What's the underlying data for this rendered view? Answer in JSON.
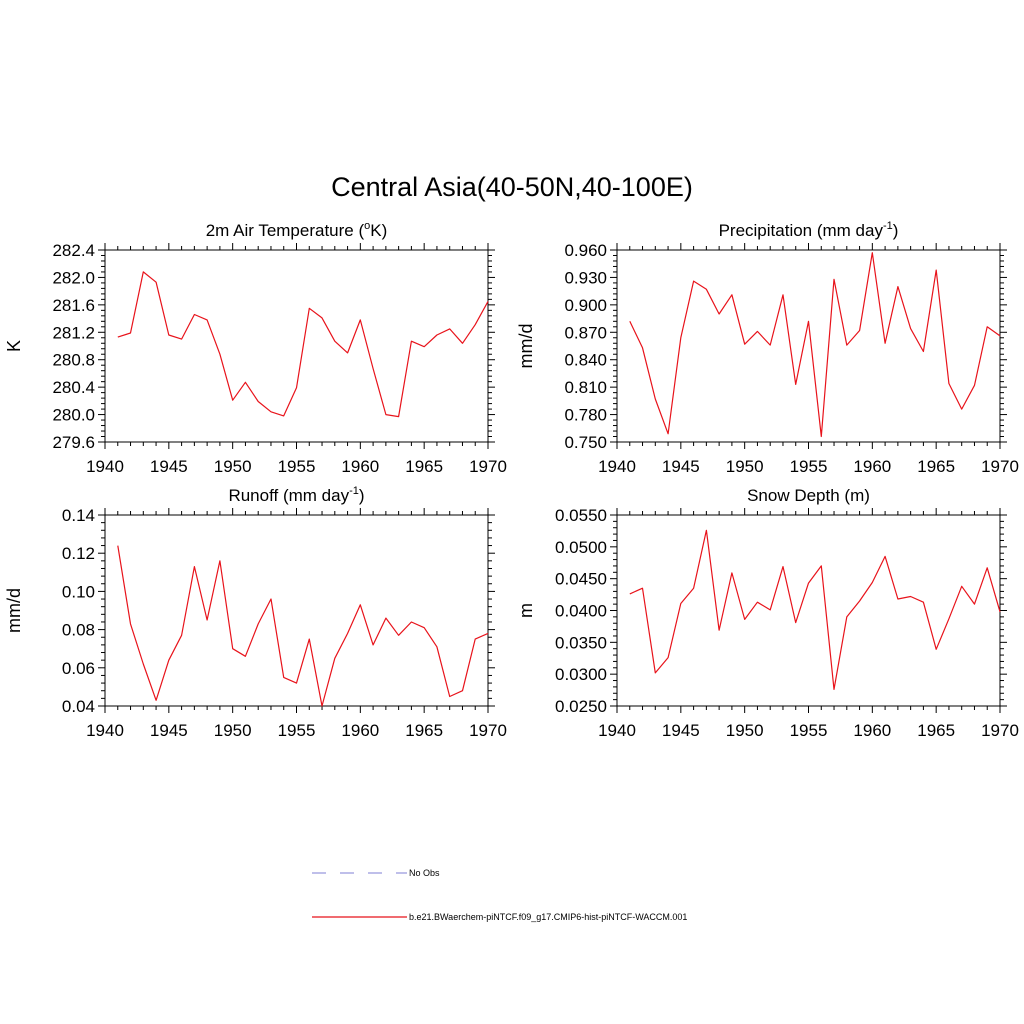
{
  "figure": {
    "title": "Central Asia(40-50N,40-100E)",
    "line_color": "#e8131b",
    "obs_color": "#9999dd"
  },
  "legend": {
    "items": [
      {
        "label": "No Obs",
        "style": "dashed",
        "color": "#9999dd"
      },
      {
        "label": "b.e21.BWaerchem-piNTCF.f09_g17.CMIP6-hist-piNTCF-WACCM.001",
        "style": "solid",
        "color": "#e8131b"
      }
    ]
  },
  "chart_data": [
    {
      "type": "line",
      "title": "2m Air Temperature (",
      "title_sup": "o",
      "title_tail": "K)",
      "ylabel": "K",
      "xlim": [
        1940,
        1970
      ],
      "ylim": [
        279.6,
        282.4
      ],
      "xticks": [
        1940,
        1945,
        1950,
        1955,
        1960,
        1965,
        1970
      ],
      "yticks": [
        "279.6",
        "280.0",
        "280.4",
        "280.8",
        "281.2",
        "281.6",
        "282.0",
        "282.4"
      ],
      "grid": false,
      "x": [
        1941,
        1942,
        1943,
        1944,
        1945,
        1946,
        1947,
        1948,
        1949,
        1950,
        1951,
        1952,
        1953,
        1954,
        1955,
        1956,
        1957,
        1958,
        1959,
        1960,
        1961,
        1962,
        1963,
        1964,
        1965,
        1966,
        1967,
        1968,
        1969,
        1970
      ],
      "values": [
        281.13,
        281.19,
        282.08,
        281.93,
        281.16,
        281.1,
        281.46,
        281.38,
        280.88,
        280.21,
        280.47,
        280.19,
        280.04,
        279.98,
        280.39,
        281.55,
        281.41,
        281.07,
        280.9,
        281.38,
        280.67,
        280.0,
        279.97,
        281.07,
        280.99,
        281.16,
        281.25,
        281.04,
        281.31,
        281.65
      ]
    },
    {
      "type": "line",
      "title": "Precipitation (mm day",
      "title_sup": "-1",
      "title_tail": ")",
      "ylabel": "mm/d",
      "xlim": [
        1940,
        1970
      ],
      "ylim": [
        0.75,
        0.96
      ],
      "xticks": [
        1940,
        1945,
        1950,
        1955,
        1960,
        1965,
        1970
      ],
      "yticks": [
        "0.750",
        "0.780",
        "0.810",
        "0.840",
        "0.870",
        "0.900",
        "0.930",
        "0.960"
      ],
      "grid": false,
      "x": [
        1941,
        1942,
        1943,
        1944,
        1945,
        1946,
        1947,
        1948,
        1949,
        1950,
        1951,
        1952,
        1953,
        1954,
        1955,
        1956,
        1957,
        1958,
        1959,
        1960,
        1961,
        1962,
        1963,
        1964,
        1965,
        1966,
        1967,
        1968,
        1969,
        1970
      ],
      "values": [
        0.882,
        0.853,
        0.797,
        0.759,
        0.864,
        0.926,
        0.917,
        0.89,
        0.911,
        0.857,
        0.871,
        0.856,
        0.911,
        0.813,
        0.882,
        0.756,
        0.928,
        0.856,
        0.872,
        0.957,
        0.858,
        0.92,
        0.874,
        0.849,
        0.938,
        0.814,
        0.786,
        0.812,
        0.876,
        0.866
      ]
    },
    {
      "type": "line",
      "title": "Runoff (mm day",
      "title_sup": "-1",
      "title_tail": ")",
      "ylabel": "mm/d",
      "xlim": [
        1940,
        1970
      ],
      "ylim": [
        0.04,
        0.14
      ],
      "xticks": [
        1940,
        1945,
        1950,
        1955,
        1960,
        1965,
        1970
      ],
      "yticks": [
        "0.04",
        "0.06",
        "0.08",
        "0.10",
        "0.12",
        "0.14"
      ],
      "grid": false,
      "x": [
        1941,
        1942,
        1943,
        1944,
        1945,
        1946,
        1947,
        1948,
        1949,
        1950,
        1951,
        1952,
        1953,
        1954,
        1955,
        1956,
        1957,
        1958,
        1959,
        1960,
        1961,
        1962,
        1963,
        1964,
        1965,
        1966,
        1967,
        1968,
        1969,
        1970
      ],
      "values": [
        0.124,
        0.083,
        0.062,
        0.043,
        0.064,
        0.077,
        0.113,
        0.085,
        0.116,
        0.07,
        0.066,
        0.083,
        0.096,
        0.055,
        0.052,
        0.075,
        0.04,
        0.065,
        0.078,
        0.093,
        0.072,
        0.086,
        0.077,
        0.084,
        0.081,
        0.071,
        0.045,
        0.048,
        0.075,
        0.078
      ]
    },
    {
      "type": "line",
      "title": "Snow Depth (m)",
      "title_sup": "",
      "title_tail": "",
      "ylabel": "m",
      "xlim": [
        1940,
        1970
      ],
      "ylim": [
        0.025,
        0.055
      ],
      "xticks": [
        1940,
        1945,
        1950,
        1955,
        1960,
        1965,
        1970
      ],
      "yticks": [
        "0.0250",
        "0.0300",
        "0.0350",
        "0.0400",
        "0.0450",
        "0.0500",
        "0.0550"
      ],
      "grid": false,
      "x": [
        1941,
        1942,
        1943,
        1944,
        1945,
        1946,
        1947,
        1948,
        1949,
        1950,
        1951,
        1952,
        1953,
        1954,
        1955,
        1956,
        1957,
        1958,
        1959,
        1960,
        1961,
        1962,
        1963,
        1964,
        1965,
        1966,
        1967,
        1968,
        1969,
        1970
      ],
      "values": [
        0.0426,
        0.0435,
        0.0302,
        0.0326,
        0.0411,
        0.0435,
        0.0526,
        0.0369,
        0.0459,
        0.0386,
        0.0413,
        0.0401,
        0.0469,
        0.0381,
        0.0443,
        0.047,
        0.0276,
        0.039,
        0.0415,
        0.0444,
        0.0485,
        0.0418,
        0.0422,
        0.0413,
        0.0339,
        0.0387,
        0.0438,
        0.041,
        0.0467,
        0.0398
      ]
    }
  ]
}
